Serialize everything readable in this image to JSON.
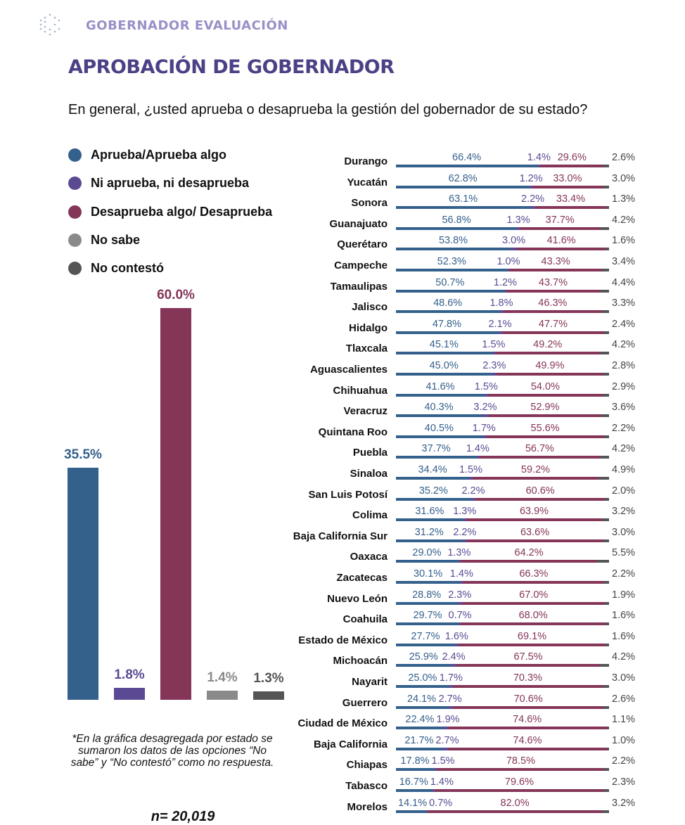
{
  "header": {
    "section": "GOBERNADOR EVALUACIÓN",
    "title": "APROBACIÓN DE GOBERNADOR",
    "question": "En general, ¿usted aprueba o desaprueba la gestión del gobernador de su estado?",
    "logo_icon": "hexagon-dots-logo"
  },
  "colors": {
    "aprueba": "#34608c",
    "ni": "#5b4a93",
    "desaprueba": "#843558",
    "no_sabe": "#8a8a8a",
    "no_contesto": "#555555"
  },
  "legend": [
    {
      "label": "Aprueba/Aprueba algo",
      "color": "#34608c"
    },
    {
      "label": "Ni aprueba, ni desaprueba",
      "color": "#5b4a93"
    },
    {
      "label": "Desaprueba algo/ Desaprueba",
      "color": "#843558"
    },
    {
      "label": "No sabe",
      "color": "#8a8a8a"
    },
    {
      "label": "No contestó",
      "color": "#555555"
    }
  ],
  "note": "*En la gráfica desagregada por estado se sumaron los datos de las opciones “No sabe” y “No contestó” como no respuesta.",
  "sample": "n= 20,019",
  "chart_data": [
    {
      "type": "bar",
      "categories": [
        "Aprueba/Aprueba algo",
        "Ni aprueba, ni desaprueba",
        "Desaprueba algo/ Desaprueba",
        "No sabe",
        "No contestó"
      ],
      "values": [
        35.5,
        1.8,
        60.0,
        1.4,
        1.3
      ],
      "labels": [
        "35.5%",
        "1.8%",
        "60.0%",
        "1.4%",
        "1.3%"
      ],
      "ylim": [
        0,
        60
      ]
    },
    {
      "type": "bar",
      "orientation": "horizontal",
      "stacked": true,
      "series_order": [
        "Aprueba/Aprueba algo",
        "Ni aprueba, ni desaprueba",
        "Desaprueba algo/ Desaprueba",
        "No respuesta"
      ],
      "rows": [
        {
          "state": "Durango",
          "values": [
            66.4,
            1.4,
            29.6,
            2.6
          ]
        },
        {
          "state": "Yucatán",
          "values": [
            62.8,
            1.2,
            33.0,
            3.0
          ]
        },
        {
          "state": "Sonora",
          "values": [
            63.1,
            2.2,
            33.4,
            1.3
          ]
        },
        {
          "state": "Guanajuato",
          "values": [
            56.8,
            1.3,
            37.7,
            4.2
          ]
        },
        {
          "state": "Querétaro",
          "values": [
            53.8,
            3.0,
            41.6,
            1.6
          ]
        },
        {
          "state": "Campeche",
          "values": [
            52.3,
            1.0,
            43.3,
            3.4
          ]
        },
        {
          "state": "Tamaulipas",
          "values": [
            50.7,
            1.2,
            43.7,
            4.4
          ]
        },
        {
          "state": "Jalisco",
          "values": [
            48.6,
            1.8,
            46.3,
            3.3
          ]
        },
        {
          "state": "Hidalgo",
          "values": [
            47.8,
            2.1,
            47.7,
            2.4
          ]
        },
        {
          "state": "Tlaxcala",
          "values": [
            45.1,
            1.5,
            49.2,
            4.2
          ]
        },
        {
          "state": "Aguascalientes",
          "values": [
            45.0,
            2.3,
            49.9,
            2.8
          ]
        },
        {
          "state": "Chihuahua",
          "values": [
            41.6,
            1.5,
            54.0,
            2.9
          ]
        },
        {
          "state": "Veracruz",
          "values": [
            40.3,
            3.2,
            52.9,
            3.6
          ]
        },
        {
          "state": "Quintana Roo",
          "values": [
            40.5,
            1.7,
            55.6,
            2.2
          ]
        },
        {
          "state": "Puebla",
          "values": [
            37.7,
            1.4,
            56.7,
            4.2
          ]
        },
        {
          "state": "Sinaloa",
          "values": [
            34.4,
            1.5,
            59.2,
            4.9
          ]
        },
        {
          "state": "San Luis Potosí",
          "values": [
            35.2,
            2.2,
            60.6,
            2.0
          ]
        },
        {
          "state": "Colima",
          "values": [
            31.6,
            1.3,
            63.9,
            3.2
          ]
        },
        {
          "state": "Baja California Sur",
          "values": [
            31.2,
            2.2,
            63.6,
            3.0
          ]
        },
        {
          "state": "Oaxaca",
          "values": [
            29.0,
            1.3,
            64.2,
            5.5
          ]
        },
        {
          "state": "Zacatecas",
          "values": [
            30.1,
            1.4,
            66.3,
            2.2
          ]
        },
        {
          "state": "Nuevo León",
          "values": [
            28.8,
            2.3,
            67.0,
            1.9
          ]
        },
        {
          "state": "Coahuila",
          "values": [
            29.7,
            0.7,
            68.0,
            1.6
          ]
        },
        {
          "state": "Estado de México",
          "values": [
            27.7,
            1.6,
            69.1,
            1.6
          ]
        },
        {
          "state": "Michoacán",
          "values": [
            25.9,
            2.4,
            67.5,
            4.2
          ]
        },
        {
          "state": "Nayarit",
          "values": [
            25.0,
            1.7,
            70.3,
            3.0
          ]
        },
        {
          "state": "Guerrero",
          "values": [
            24.1,
            2.7,
            70.6,
            2.6
          ]
        },
        {
          "state": "Ciudad de México",
          "values": [
            22.4,
            1.9,
            74.6,
            1.1
          ]
        },
        {
          "state": "Baja California",
          "values": [
            21.7,
            2.7,
            74.6,
            1.0
          ]
        },
        {
          "state": "Chiapas",
          "values": [
            17.8,
            1.5,
            78.5,
            2.2
          ]
        },
        {
          "state": "Tabasco",
          "values": [
            16.7,
            1.4,
            79.6,
            2.3
          ]
        },
        {
          "state": "Morelos",
          "values": [
            14.1,
            0.7,
            82.0,
            3.2
          ]
        }
      ]
    }
  ]
}
